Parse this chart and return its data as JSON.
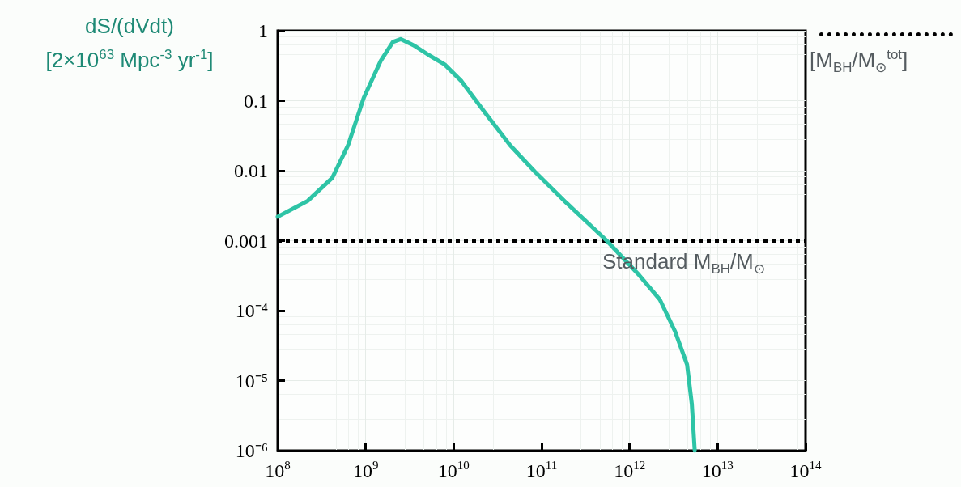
{
  "chart_data": {
    "type": "line",
    "ylabel": "dS/(dVdt)\n[2×10$^{63}$ Mpc$^{-3}$ yr$^{-1}$]",
    "log": "xy",
    "grid": true,
    "marker": "none",
    "line_style": "solid",
    "xlim": [
      100000000.0,
      100000000000000.0
    ],
    "xticks": [
      {
        "value": 100000000.0,
        "label": "10$^{8}$"
      },
      {
        "value": 1000000000.0,
        "label": "10$^{9}$"
      },
      {
        "value": 10000000000.0,
        "label": "10$^{10}$"
      },
      {
        "value": 100000000000.0,
        "label": "10$^{11}$"
      },
      {
        "value": 1000000000000.0,
        "label": "10$^{12}$"
      },
      {
        "value": 10000000000000.0,
        "label": "10$^{13}$"
      },
      {
        "value": 100000000000000.0,
        "label": "10$^{14}$"
      }
    ],
    "ylim": [
      1e-06,
      1
    ],
    "yticks": [
      {
        "value": 1e-06,
        "label": "10⁻⁶"
      },
      {
        "value": 1e-05,
        "label": "10⁻⁵"
      },
      {
        "value": 0.0001,
        "label": "10⁻⁴"
      },
      0.001,
      0.01,
      0.1,
      1
    ],
    "series": [
      {
        "color": "#2ec4a6",
        "x": [
          100000000.0,
          219000000.0,
          417000000.0,
          630000000.0,
          950000000.0,
          1480000000.0,
          2040000000.0,
          2500000000.0,
          3500000000.0,
          5200000000.0,
          7900000000.0,
          12300000000.0,
          23000000000.0,
          44000000000.0,
          83000000000.0,
          190000000000.0,
          550000000000.0,
          1290000000000.0,
          2200000000000.0,
          3300000000000.0,
          4500000000000.0,
          5100000000000.0,
          5500000000000.0
        ],
        "values": [
          0.0022,
          0.0037,
          0.0079,
          0.023,
          0.11,
          0.37,
          0.69,
          0.76,
          0.62,
          0.45,
          0.33,
          0.19,
          0.066,
          0.023,
          0.0098,
          0.0035,
          0.001,
          0.00032,
          0.000145,
          5e-05,
          1.7e-05,
          4.6e-06,
          1e-06
        ]
      }
    ],
    "ref_lines": [
      {
        "axis": "y",
        "value": 0.001,
        "label": "Standard M$_{BH}$/M$_{⊙}$",
        "color": "#000000",
        "line_style": "dotted"
      }
    ],
    "annotations": [
      "[M$_{BH}$/M$_{⊙}$$^{tot}$]"
    ]
  }
}
